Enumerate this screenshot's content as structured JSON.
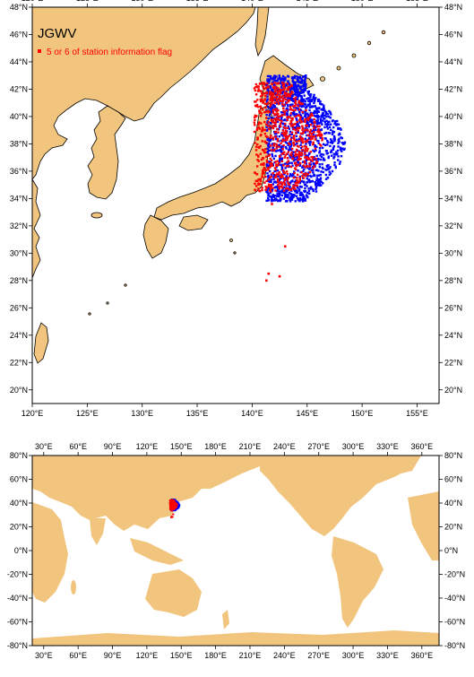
{
  "title": "JGWV",
  "legend_label": "5 or 6 of station information flag",
  "colors": {
    "land": "#f2c57e",
    "ocean": "#ffffff",
    "flag_stations": "#ff0000",
    "stations": "#0000ff",
    "border": "#000000"
  },
  "top_map": {
    "lon_range": [
      120,
      157
    ],
    "lat_range": [
      19,
      48
    ],
    "x_ticks": [
      "120°E",
      "125°E",
      "130°E",
      "135°E",
      "140°E",
      "145°E",
      "150°E",
      "155°E"
    ],
    "y_ticks": [
      "20°N",
      "22°N",
      "24°N",
      "26°N",
      "28°N",
      "30°N",
      "32°N",
      "34°N",
      "36°N",
      "38°N",
      "40°N",
      "42°N",
      "44°N",
      "46°N",
      "48°N"
    ]
  },
  "bottom_map": {
    "lon_range": [
      20,
      375
    ],
    "lat_range": [
      -80,
      80
    ],
    "x_ticks": [
      "30°E",
      "60°E",
      "90°E",
      "120°E",
      "150°E",
      "180°E",
      "210°E",
      "240°E",
      "270°E",
      "300°E",
      "330°E",
      "360°E"
    ],
    "y_ticks": [
      "80°N",
      "60°N",
      "40°N",
      "20°N",
      "0°N",
      "-20°N",
      "-40°N",
      "-60°N",
      "-80°N"
    ]
  },
  "chart_data": {
    "type": "scatter",
    "title": "JGWV",
    "series": [
      {
        "name": "",
        "color": "#0000ff",
        "region": {
          "lon": [
            140.5,
            148.5
          ],
          "lat": [
            33.8,
            43.0
          ]
        }
      },
      {
        "name": "5 or 6 of station information flag",
        "color": "#ff0000",
        "region": {
          "lon": [
            140.2,
            146.5
          ],
          "lat": [
            34.5,
            42.5
          ]
        },
        "outliers": [
          [
            143.0,
            30.5
          ],
          [
            141.5,
            28.5
          ],
          [
            142.5,
            28.3
          ],
          [
            141.3,
            28.0
          ],
          [
            141.8,
            33.6
          ]
        ]
      }
    ]
  }
}
